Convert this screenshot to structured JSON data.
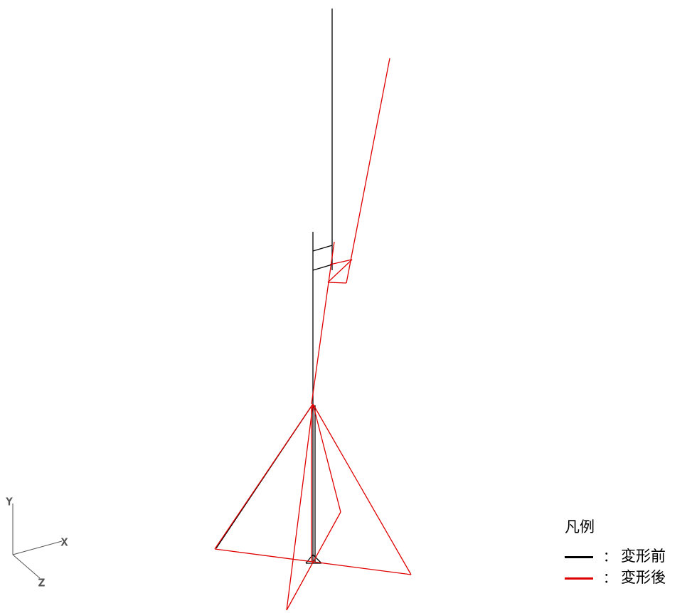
{
  "colors": {
    "before": "#000000",
    "after": "#e00000",
    "axis": "#555555"
  },
  "axes": {
    "y_label": "Y",
    "x_label": "X",
    "z_label": "Z"
  },
  "legend": {
    "title": "凡例",
    "separator": "：",
    "items": [
      {
        "label": "変形前",
        "color": "#000000"
      },
      {
        "label": "変形後",
        "color": "#e00000"
      }
    ]
  }
}
